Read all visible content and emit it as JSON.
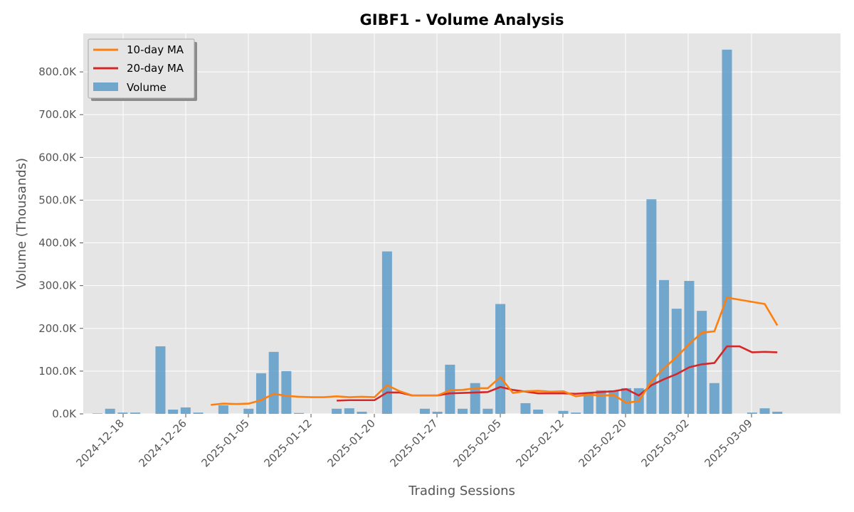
{
  "chart_data": {
    "type": "bar",
    "title": "GIBF1 - Volume Analysis",
    "xlabel": "Trading Sessions",
    "ylabel": "Volume (Thousands)",
    "ylim": [
      0,
      890
    ],
    "y_ticks": [
      0,
      100,
      200,
      300,
      400,
      500,
      600,
      700,
      800
    ],
    "y_tick_labels": [
      "0.0K",
      "100.0K",
      "200.0K",
      "300.0K",
      "400.0K",
      "500.0K",
      "600.0K",
      "700.0K",
      "800.0K"
    ],
    "x_tick_labels": [
      "2024-12-18",
      "2024-12-26",
      "2025-01-05",
      "2025-01-12",
      "2025-01-20",
      "2025-01-27",
      "2025-02-05",
      "2025-02-12",
      "2025-02-20",
      "2025-03-02",
      "2025-03-09"
    ],
    "grid": true,
    "legend_position": "top-left",
    "colors": {
      "volume": "#4a90c4",
      "ma10": "#ff7f0e",
      "ma20": "#d62728",
      "plot_bg": "#e5e5e5",
      "grid": "#ffffff"
    },
    "series": [
      {
        "name": "Volume",
        "kind": "bar",
        "values": [
          1,
          12,
          3,
          3,
          0,
          158,
          10,
          15,
          3,
          0,
          20,
          0,
          12,
          95,
          145,
          100,
          2,
          0,
          0,
          12,
          13,
          5,
          0,
          380,
          0,
          0,
          12,
          5,
          115,
          12,
          72,
          12,
          257,
          0,
          25,
          10,
          0,
          7,
          3,
          50,
          55,
          55,
          60,
          60,
          502,
          313,
          246,
          311,
          241,
          72,
          852,
          0,
          3,
          13,
          5
        ]
      },
      {
        "name": "10-day MA",
        "kind": "line",
        "values": [
          null,
          null,
          null,
          null,
          null,
          null,
          null,
          null,
          null,
          21,
          24,
          23,
          24,
          32,
          47,
          42,
          40,
          39,
          39,
          41,
          39,
          40,
          39,
          67,
          53,
          43,
          43,
          43,
          55,
          56,
          60,
          60,
          86,
          49,
          53,
          54,
          52,
          53,
          41,
          45,
          43,
          44,
          26,
          30,
          76,
          107,
          133,
          163,
          190,
          193,
          272,
          267,
          262,
          257,
          207
        ]
      },
      {
        "name": "20-day MA",
        "kind": "line",
        "values": [
          null,
          null,
          null,
          null,
          null,
          null,
          null,
          null,
          null,
          null,
          null,
          null,
          null,
          null,
          null,
          null,
          null,
          null,
          null,
          31,
          32,
          32,
          32,
          50,
          50,
          43,
          43,
          43,
          48,
          49,
          50,
          51,
          63,
          56,
          52,
          48,
          48,
          48,
          47,
          49,
          51,
          53,
          58,
          43,
          67,
          81,
          93,
          109,
          116,
          119,
          158,
          158,
          144,
          145,
          144
        ]
      }
    ]
  }
}
